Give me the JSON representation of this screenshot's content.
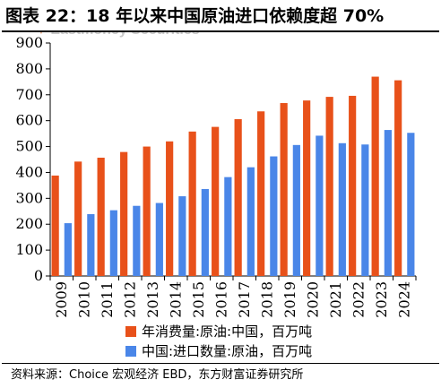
{
  "header": {
    "title": "图表 22：18 年以来中国原油进口依赖度超 70%",
    "watermark": "Eastmoney Securities"
  },
  "colors": {
    "consumption": "#e8511a",
    "imports": "#4a86e8"
  },
  "chart_data": {
    "type": "bar",
    "categories": [
      "2009",
      "2010",
      "2011",
      "2012",
      "2013",
      "2014",
      "2015",
      "2016",
      "2017",
      "2018",
      "2019",
      "2020",
      "2021",
      "2022",
      "2023",
      "2024"
    ],
    "series": [
      {
        "name": "年消费量:原油:中国，百万吨",
        "values": [
          388,
          442,
          457,
          479,
          500,
          520,
          558,
          576,
          606,
          636,
          668,
          678,
          692,
          696,
          770,
          756
        ]
      },
      {
        "name": "中国:进口数量:原油，百万吨",
        "values": [
          204,
          239,
          254,
          271,
          282,
          308,
          336,
          382,
          420,
          462,
          506,
          542,
          513,
          508,
          564,
          553
        ]
      }
    ],
    "ylim": [
      0,
      900
    ],
    "yticks": [
      "0",
      "100",
      "200",
      "300",
      "400",
      "500",
      "600",
      "700",
      "800",
      "900"
    ],
    "grid": false
  },
  "footer": {
    "source": "资料来源：Choice 宏观经济 EBD，东方财富证券研究所"
  }
}
